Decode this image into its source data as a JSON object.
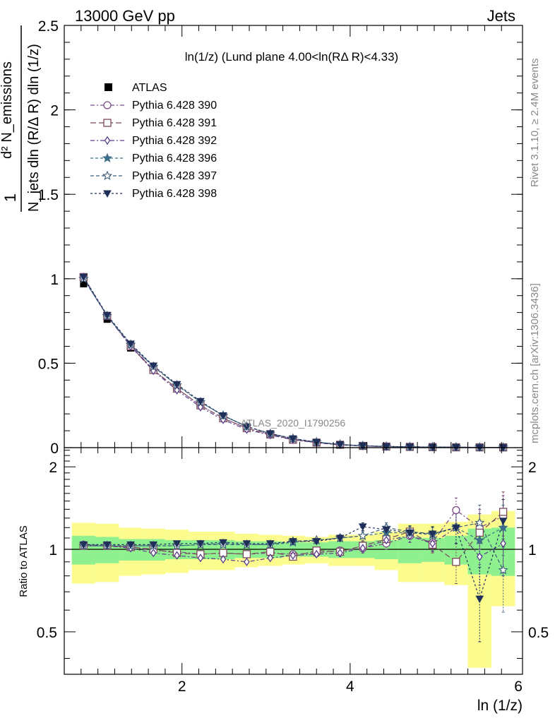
{
  "header": {
    "left": "13000 GeV pp",
    "right": "Jets"
  },
  "side": {
    "top": "Rivet 3.1.10, ≥ 2.4M events",
    "bottom": "mcplots.cern.ch [arXiv:1306.3436]"
  },
  "colors": {
    "band_inner": "#8ef08e",
    "band_outer": "#fcfc8e",
    "s390": "#7a4a8a",
    "s391": "#7a4a5a",
    "s392": "#5a3a8a",
    "s396": "#3f6e8a",
    "s397": "#3f5e7a",
    "s398": "#1f2f5a"
  },
  "chart_data": [
    {
      "type": "line",
      "title": "ln(1/z) (Lund plane 4.00<ln(RΔ R)<4.33)",
      "watermark": "ATLAS_2020_I1790256",
      "ylabel_lines": [
        "1",
        "N_jets dln (R/Δ R) dln (1/z)",
        "d² N_emissions"
      ],
      "ylim": [
        0,
        2.5
      ],
      "yticks": [
        "0",
        "0.5",
        "1",
        "1.5",
        "2",
        "2.5"
      ],
      "xlim": [
        0.6,
        6.05
      ],
      "x": [
        0.83,
        1.11,
        1.39,
        1.66,
        1.94,
        2.22,
        2.49,
        2.77,
        3.05,
        3.32,
        3.6,
        3.88,
        4.15,
        4.43,
        4.71,
        4.98,
        5.26,
        5.54,
        5.82
      ],
      "data": {
        "name": "ATLAS",
        "values": [
          0.97,
          0.76,
          0.59,
          0.47,
          0.36,
          0.26,
          0.18,
          0.12,
          0.08,
          0.05,
          0.03,
          0.017,
          0.01,
          0.006,
          0.004,
          0.003,
          0.002,
          0.0015,
          0.0012
        ]
      },
      "series": [
        {
          "name": "Pythia 6.428 390",
          "marker": "circle-open",
          "values": [
            1.01,
            0.78,
            0.61,
            0.46,
            0.35,
            0.25,
            0.175,
            0.115,
            0.078,
            0.048,
            0.03,
            0.017,
            0.01,
            0.0065,
            0.0045,
            0.0033,
            0.0028,
            0.0017,
            0.0016
          ]
        },
        {
          "name": "Pythia 6.428 391",
          "marker": "square-open",
          "values": [
            1.01,
            0.78,
            0.6,
            0.46,
            0.35,
            0.25,
            0.174,
            0.115,
            0.078,
            0.047,
            0.03,
            0.017,
            0.0103,
            0.0065,
            0.0046,
            0.0031,
            0.0018,
            0.0017,
            0.0016
          ]
        },
        {
          "name": "Pythia 6.428 392",
          "marker": "diamond-open",
          "values": [
            1.01,
            0.78,
            0.6,
            0.455,
            0.34,
            0.24,
            0.165,
            0.107,
            0.074,
            0.047,
            0.029,
            0.0165,
            0.0101,
            0.0064,
            0.0045,
            0.0031,
            0.0024,
            0.0014,
            0.0013
          ]
        },
        {
          "name": "Pythia 6.428 396",
          "marker": "star-filled",
          "values": [
            1.0,
            0.78,
            0.61,
            0.48,
            0.37,
            0.27,
            0.19,
            0.125,
            0.083,
            0.053,
            0.033,
            0.019,
            0.011,
            0.0068,
            0.0046,
            0.0033,
            0.0025,
            0.0018,
            0.0014
          ]
        },
        {
          "name": "Pythia 6.428 397",
          "marker": "star-open",
          "values": [
            1.0,
            0.78,
            0.61,
            0.48,
            0.37,
            0.27,
            0.19,
            0.125,
            0.083,
            0.054,
            0.033,
            0.019,
            0.011,
            0.0072,
            0.0046,
            0.0033,
            0.0024,
            0.0016,
            0.001
          ]
        },
        {
          "name": "Pythia 6.428 398",
          "marker": "triangle-down-filled",
          "values": [
            1.01,
            0.785,
            0.615,
            0.485,
            0.375,
            0.275,
            0.19,
            0.125,
            0.084,
            0.054,
            0.032,
            0.019,
            0.0113,
            0.007,
            0.0046,
            0.0033,
            0.0025,
            0.001,
            0.0015
          ]
        }
      ]
    },
    {
      "type": "line",
      "ylabel": "Ratio to ATLAS",
      "xlabel": "ln (1/z)",
      "ylim": [
        0.35,
        2.35
      ],
      "yticks": [
        "0.5",
        "1",
        "2"
      ],
      "xticks": [
        "2",
        "4",
        "6"
      ],
      "x_edges": [
        0.69,
        0.97,
        1.25,
        1.52,
        1.8,
        2.08,
        2.36,
        2.63,
        2.91,
        3.19,
        3.46,
        3.74,
        4.02,
        4.29,
        4.57,
        4.85,
        5.12,
        5.4,
        5.68,
        5.96
      ],
      "band_inner": [
        [
          0.88,
          1.12
        ],
        [
          0.89,
          1.11
        ],
        [
          0.91,
          1.09
        ],
        [
          0.91,
          1.09
        ],
        [
          0.92,
          1.08
        ],
        [
          0.92,
          1.08
        ],
        [
          0.92,
          1.08
        ],
        [
          0.93,
          1.07
        ],
        [
          0.93,
          1.07
        ],
        [
          0.94,
          1.06
        ],
        [
          0.94,
          1.06
        ],
        [
          0.93,
          1.07
        ],
        [
          0.93,
          1.07
        ],
        [
          0.92,
          1.08
        ],
        [
          0.89,
          1.11
        ],
        [
          0.9,
          1.1
        ],
        [
          0.88,
          1.12
        ],
        [
          0.81,
          1.19
        ],
        [
          0.8,
          1.2
        ]
      ],
      "band_outer": [
        [
          0.75,
          1.25
        ],
        [
          0.76,
          1.24
        ],
        [
          0.8,
          1.2
        ],
        [
          0.81,
          1.19
        ],
        [
          0.82,
          1.18
        ],
        [
          0.84,
          1.16
        ],
        [
          0.84,
          1.16
        ],
        [
          0.86,
          1.14
        ],
        [
          0.87,
          1.13
        ],
        [
          0.88,
          1.12
        ],
        [
          0.89,
          1.11
        ],
        [
          0.87,
          1.13
        ],
        [
          0.87,
          1.13
        ],
        [
          0.84,
          1.16
        ],
        [
          0.76,
          1.24
        ],
        [
          0.76,
          1.24
        ],
        [
          0.74,
          1.26
        ],
        [
          0.37,
          1.34
        ],
        [
          0.62,
          1.38
        ]
      ],
      "series": [
        {
          "name": "Pythia 6.428 390",
          "values": [
            1.04,
            1.03,
            1.02,
            0.99,
            0.98,
            0.96,
            0.97,
            0.96,
            0.97,
            0.96,
            0.97,
            0.99,
            1.01,
            1.05,
            1.12,
            1.06,
            1.39,
            1.2,
            1.32
          ],
          "errors": [
            0.01,
            0.01,
            0.01,
            0.01,
            0.01,
            0.01,
            0.01,
            0.01,
            0.01,
            0.02,
            0.02,
            0.03,
            0.04,
            0.05,
            0.06,
            0.07,
            0.15,
            0.2,
            0.25
          ]
        },
        {
          "name": "Pythia 6.428 391",
          "values": [
            1.03,
            1.03,
            1.02,
            1.0,
            0.97,
            0.96,
            0.97,
            0.96,
            0.98,
            0.94,
            0.99,
            0.98,
            1.03,
            1.09,
            1.16,
            1.04,
            0.9,
            1.15,
            1.37
          ],
          "errors": [
            0.01,
            0.01,
            0.01,
            0.01,
            0.01,
            0.01,
            0.01,
            0.01,
            0.01,
            0.02,
            0.02,
            0.03,
            0.04,
            0.05,
            0.06,
            0.07,
            0.15,
            0.2,
            0.25
          ]
        },
        {
          "name": "Pythia 6.428 392",
          "values": [
            1.04,
            1.03,
            1.01,
            0.97,
            0.95,
            0.93,
            0.92,
            0.9,
            0.93,
            0.95,
            0.96,
            0.97,
            1.01,
            1.08,
            1.12,
            1.05,
            1.2,
            0.94,
            1.05
          ],
          "errors": [
            0.01,
            0.01,
            0.01,
            0.01,
            0.01,
            0.01,
            0.01,
            0.01,
            0.01,
            0.02,
            0.02,
            0.03,
            0.04,
            0.05,
            0.06,
            0.07,
            0.15,
            0.2,
            0.25
          ]
        },
        {
          "name": "Pythia 6.428 396",
          "values": [
            1.03,
            1.03,
            1.03,
            1.03,
            1.03,
            1.04,
            1.05,
            1.04,
            1.04,
            1.06,
            1.08,
            1.1,
            1.12,
            1.15,
            1.15,
            1.13,
            1.2,
            1.08,
            1.2
          ],
          "errors": [
            0.01,
            0.01,
            0.01,
            0.01,
            0.01,
            0.01,
            0.01,
            0.01,
            0.01,
            0.02,
            0.02,
            0.03,
            0.04,
            0.05,
            0.06,
            0.07,
            0.15,
            0.2,
            0.25
          ]
        },
        {
          "name": "Pythia 6.428 397",
          "values": [
            1.03,
            1.03,
            1.03,
            1.03,
            1.03,
            1.04,
            1.04,
            1.04,
            1.04,
            1.07,
            1.08,
            1.1,
            1.12,
            1.2,
            1.16,
            1.14,
            1.2,
            1.25,
            0.84
          ],
          "errors": [
            0.01,
            0.01,
            0.01,
            0.01,
            0.01,
            0.01,
            0.01,
            0.01,
            0.01,
            0.02,
            0.02,
            0.03,
            0.04,
            0.05,
            0.06,
            0.07,
            0.15,
            0.2,
            0.25
          ]
        },
        {
          "name": "Pythia 6.428 398",
          "values": [
            1.04,
            1.04,
            1.04,
            1.04,
            1.05,
            1.05,
            1.06,
            1.05,
            1.05,
            1.07,
            1.07,
            1.1,
            1.21,
            1.18,
            1.15,
            1.14,
            1.2,
            0.66,
            1.27
          ],
          "errors": [
            0.01,
            0.01,
            0.01,
            0.01,
            0.01,
            0.01,
            0.01,
            0.01,
            0.01,
            0.02,
            0.02,
            0.03,
            0.04,
            0.05,
            0.06,
            0.07,
            0.15,
            0.2,
            0.25
          ]
        }
      ]
    }
  ]
}
